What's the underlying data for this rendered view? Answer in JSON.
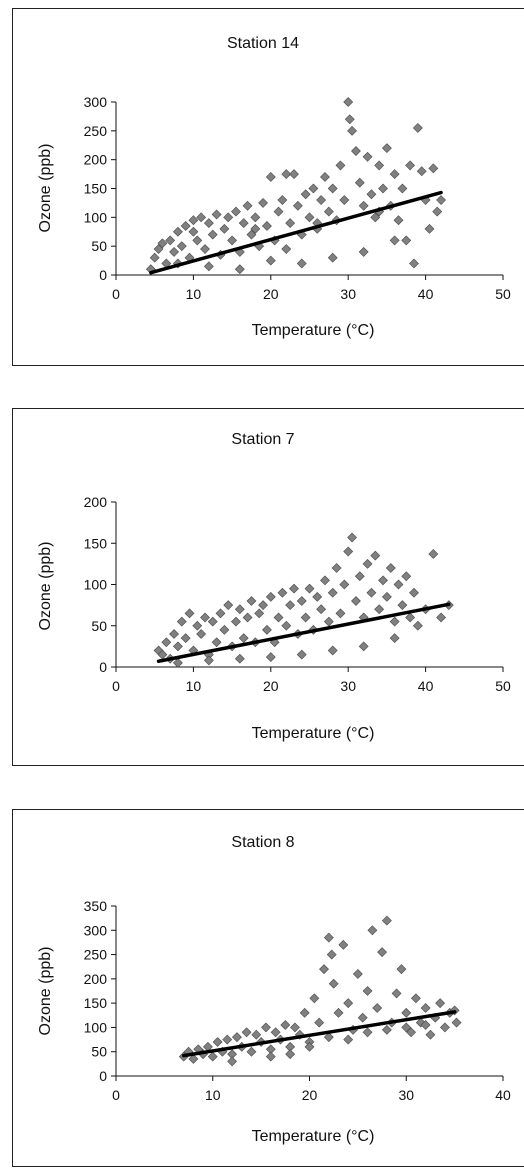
{
  "chart_data": [
    {
      "type": "scatter",
      "title": "Station 14",
      "xlabel": "Temperature (°C)",
      "ylabel": "Ozone (ppb)",
      "xlim": [
        0,
        50
      ],
      "ylim": [
        0,
        300
      ],
      "xticks": [
        "0",
        "10",
        "20",
        "30",
        "40",
        "50"
      ],
      "yticks": [
        "0",
        "50",
        "100",
        "150",
        "200",
        "250",
        "300"
      ],
      "grid": false,
      "trendline": {
        "x": [
          4.5,
          42
        ],
        "y": [
          4,
          143
        ]
      },
      "point_color": "#808080",
      "line_color": "#000000",
      "series": [
        {
          "points": [
            [
              4.5,
              10
            ],
            [
              5,
              30
            ],
            [
              5.5,
              45
            ],
            [
              6,
              55
            ],
            [
              6.5,
              20
            ],
            [
              7,
              60
            ],
            [
              7.5,
              40
            ],
            [
              8,
              75
            ],
            [
              8.5,
              50
            ],
            [
              9,
              85
            ],
            [
              9.5,
              30
            ],
            [
              10,
              95
            ],
            [
              10.5,
              60
            ],
            [
              11,
              100
            ],
            [
              11.5,
              45
            ],
            [
              12,
              90
            ],
            [
              12.5,
              70
            ],
            [
              13,
              105
            ],
            [
              13.5,
              35
            ],
            [
              14,
              80
            ],
            [
              14.5,
              100
            ],
            [
              15,
              60
            ],
            [
              15.5,
              110
            ],
            [
              16,
              40
            ],
            [
              16.5,
              90
            ],
            [
              17,
              120
            ],
            [
              17.5,
              70
            ],
            [
              18,
              100
            ],
            [
              18.5,
              50
            ],
            [
              19,
              125
            ],
            [
              19.5,
              85
            ],
            [
              20,
              170
            ],
            [
              20.5,
              60
            ],
            [
              21,
              110
            ],
            [
              21.5,
              130
            ],
            [
              22,
              175
            ],
            [
              22.5,
              90
            ],
            [
              23,
              175
            ],
            [
              23.5,
              120
            ],
            [
              24,
              70
            ],
            [
              24.5,
              140
            ],
            [
              25,
              100
            ],
            [
              25.5,
              150
            ],
            [
              26,
              80
            ],
            [
              26.5,
              130
            ],
            [
              27,
              170
            ],
            [
              27.5,
              110
            ],
            [
              28,
              150
            ],
            [
              28.5,
              95
            ],
            [
              29,
              190
            ],
            [
              29.5,
              130
            ],
            [
              30,
              300
            ],
            [
              30.2,
              270
            ],
            [
              30.5,
              250
            ],
            [
              31,
              215
            ],
            [
              31.5,
              160
            ],
            [
              32,
              120
            ],
            [
              32.5,
              205
            ],
            [
              33,
              140
            ],
            [
              33.5,
              100
            ],
            [
              34,
              190
            ],
            [
              34.5,
              150
            ],
            [
              35,
              220
            ],
            [
              35.5,
              120
            ],
            [
              36,
              175
            ],
            [
              36.5,
              95
            ],
            [
              37,
              150
            ],
            [
              37.5,
              60
            ],
            [
              38,
              190
            ],
            [
              38.5,
              20
            ],
            [
              39,
              255
            ],
            [
              39.5,
              180
            ],
            [
              40,
              130
            ],
            [
              40.5,
              80
            ],
            [
              41,
              185
            ],
            [
              41.5,
              110
            ],
            [
              42,
              130
            ],
            [
              8,
              20
            ],
            [
              12,
              15
            ],
            [
              16,
              10
            ],
            [
              20,
              25
            ],
            [
              24,
              20
            ],
            [
              28,
              30
            ],
            [
              32,
              40
            ],
            [
              36,
              60
            ],
            [
              10,
              75
            ],
            [
              18,
              80
            ],
            [
              26,
              90
            ],
            [
              34,
              110
            ],
            [
              22,
              45
            ]
          ]
        }
      ]
    },
    {
      "type": "scatter",
      "title": "Station 7",
      "xlabel": "Temperature (°C)",
      "ylabel": "Ozone (ppb)",
      "xlim": [
        0,
        50
      ],
      "ylim": [
        0,
        200
      ],
      "xticks": [
        "0",
        "10",
        "20",
        "30",
        "40",
        "50"
      ],
      "yticks": [
        "0",
        "50",
        "100",
        "150",
        "200"
      ],
      "grid": false,
      "trendline": {
        "x": [
          5.5,
          43
        ],
        "y": [
          7,
          76
        ]
      },
      "point_color": "#808080",
      "line_color": "#000000",
      "series": [
        {
          "points": [
            [
              5.5,
              20
            ],
            [
              6,
              15
            ],
            [
              6.5,
              30
            ],
            [
              7,
              10
            ],
            [
              7.5,
              40
            ],
            [
              8,
              25
            ],
            [
              8.5,
              55
            ],
            [
              9,
              35
            ],
            [
              9.5,
              65
            ],
            [
              10,
              20
            ],
            [
              10.5,
              50
            ],
            [
              11,
              40
            ],
            [
              11.5,
              60
            ],
            [
              12,
              15
            ],
            [
              12.5,
              55
            ],
            [
              13,
              30
            ],
            [
              13.5,
              65
            ],
            [
              14,
              45
            ],
            [
              14.5,
              75
            ],
            [
              15,
              25
            ],
            [
              15.5,
              55
            ],
            [
              16,
              70
            ],
            [
              16.5,
              35
            ],
            [
              17,
              60
            ],
            [
              17.5,
              80
            ],
            [
              18,
              30
            ],
            [
              18.5,
              65
            ],
            [
              19,
              75
            ],
            [
              19.5,
              45
            ],
            [
              20,
              85
            ],
            [
              20.5,
              30
            ],
            [
              21,
              60
            ],
            [
              21.5,
              90
            ],
            [
              22,
              50
            ],
            [
              22.5,
              75
            ],
            [
              23,
              95
            ],
            [
              23.5,
              40
            ],
            [
              24,
              80
            ],
            [
              24.5,
              60
            ],
            [
              25,
              95
            ],
            [
              25.5,
              45
            ],
            [
              26,
              85
            ],
            [
              26.5,
              70
            ],
            [
              27,
              105
            ],
            [
              27.5,
              55
            ],
            [
              28,
              90
            ],
            [
              28.5,
              120
            ],
            [
              29,
              65
            ],
            [
              29.5,
              100
            ],
            [
              30,
              140
            ],
            [
              30.5,
              157
            ],
            [
              31,
              80
            ],
            [
              31.5,
              110
            ],
            [
              32,
              60
            ],
            [
              32.5,
              125
            ],
            [
              33,
              90
            ],
            [
              33.5,
              135
            ],
            [
              34,
              70
            ],
            [
              34.5,
              105
            ],
            [
              35,
              85
            ],
            [
              35.5,
              120
            ],
            [
              36,
              55
            ],
            [
              36.5,
              100
            ],
            [
              37,
              75
            ],
            [
              37.5,
              110
            ],
            [
              38,
              60
            ],
            [
              38.5,
              90
            ],
            [
              39,
              50
            ],
            [
              40,
              70
            ],
            [
              41,
              137
            ],
            [
              42,
              60
            ],
            [
              43,
              75
            ],
            [
              8,
              5
            ],
            [
              12,
              8
            ],
            [
              16,
              10
            ],
            [
              20,
              12
            ],
            [
              24,
              15
            ],
            [
              28,
              20
            ],
            [
              32,
              25
            ],
            [
              36,
              35
            ]
          ]
        }
      ]
    },
    {
      "type": "scatter",
      "title": "Station 8",
      "xlabel": "Temperature (°C)",
      "ylabel": "Ozone (ppb)",
      "xlim": [
        0,
        40
      ],
      "ylim": [
        0,
        350
      ],
      "xticks": [
        "0",
        "10",
        "20",
        "30",
        "40"
      ],
      "yticks": [
        "0",
        "50",
        "100",
        "150",
        "200",
        "250",
        "300",
        "350"
      ],
      "grid": false,
      "trendline": {
        "x": [
          7,
          35
        ],
        "y": [
          42,
          132
        ]
      },
      "point_color": "#808080",
      "line_color": "#000000",
      "series": [
        {
          "points": [
            [
              7,
              40
            ],
            [
              7.5,
              50
            ],
            [
              8,
              35
            ],
            [
              8.5,
              55
            ],
            [
              9,
              45
            ],
            [
              9.5,
              60
            ],
            [
              10,
              40
            ],
            [
              10.5,
              70
            ],
            [
              11,
              50
            ],
            [
              11.5,
              75
            ],
            [
              12,
              45
            ],
            [
              12.5,
              80
            ],
            [
              13,
              60
            ],
            [
              13.5,
              90
            ],
            [
              14,
              50
            ],
            [
              14.5,
              85
            ],
            [
              15,
              70
            ],
            [
              15.5,
              100
            ],
            [
              16,
              55
            ],
            [
              16.5,
              90
            ],
            [
              17,
              75
            ],
            [
              17.5,
              105
            ],
            [
              18,
              60
            ],
            [
              18.5,
              100
            ],
            [
              19,
              85
            ],
            [
              19.5,
              130
            ],
            [
              20,
              70
            ],
            [
              20.5,
              160
            ],
            [
              21,
              110
            ],
            [
              21.5,
              220
            ],
            [
              22,
              285
            ],
            [
              22.3,
              250
            ],
            [
              22.5,
              190
            ],
            [
              23,
              130
            ],
            [
              23.5,
              270
            ],
            [
              24,
              150
            ],
            [
              24.5,
              95
            ],
            [
              25,
              210
            ],
            [
              25.5,
              120
            ],
            [
              26,
              175
            ],
            [
              26.5,
              300
            ],
            [
              27,
              140
            ],
            [
              27.5,
              255
            ],
            [
              28,
              320
            ],
            [
              28.5,
              110
            ],
            [
              29,
              170
            ],
            [
              29.5,
              220
            ],
            [
              30,
              130
            ],
            [
              30.5,
              90
            ],
            [
              31,
              160
            ],
            [
              31.5,
              110
            ],
            [
              32,
              140
            ],
            [
              32.5,
              85
            ],
            [
              33,
              120
            ],
            [
              33.5,
              150
            ],
            [
              34,
              100
            ],
            [
              34.5,
              130
            ],
            [
              35,
              135
            ],
            [
              35.2,
              110
            ],
            [
              20,
              60
            ],
            [
              22,
              80
            ],
            [
              24,
              75
            ],
            [
              26,
              90
            ],
            [
              28,
              95
            ],
            [
              30,
              100
            ],
            [
              32,
              105
            ],
            [
              12,
              30
            ],
            [
              16,
              40
            ],
            [
              18,
              45
            ]
          ]
        }
      ]
    }
  ]
}
